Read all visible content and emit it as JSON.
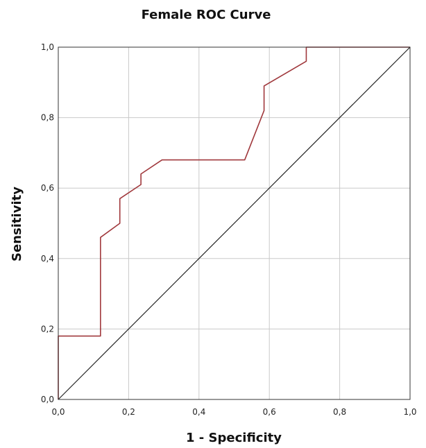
{
  "chart_data": {
    "type": "line",
    "title": "Female ROC Curve",
    "xlabel": "1 - Specificity",
    "ylabel": "Sensitivity",
    "xlim": [
      0,
      1
    ],
    "ylim": [
      0,
      1
    ],
    "x_ticks": [
      "0,0",
      "0,2",
      "0,4",
      "0,6",
      "0,8",
      "1,0"
    ],
    "y_ticks": [
      "0,0",
      "0,2",
      "0,4",
      "0,6",
      "0,8",
      "1,0"
    ],
    "grid": true,
    "series": [
      {
        "name": "",
        "color": "#a0383c",
        "points": [
          [
            0.0,
            0.0
          ],
          [
            0.0,
            0.18
          ],
          [
            0.12,
            0.18
          ],
          [
            0.12,
            0.46
          ],
          [
            0.175,
            0.5
          ],
          [
            0.175,
            0.57
          ],
          [
            0.235,
            0.61
          ],
          [
            0.235,
            0.64
          ],
          [
            0.295,
            0.68
          ],
          [
            0.53,
            0.68
          ],
          [
            0.585,
            0.82
          ],
          [
            0.585,
            0.89
          ],
          [
            0.705,
            0.96
          ],
          [
            0.705,
            1.0
          ],
          [
            1.0,
            1.0
          ]
        ]
      },
      {
        "name": "",
        "color": "#222222",
        "points": [
          [
            0.0,
            0.0
          ],
          [
            1.0,
            1.0
          ]
        ]
      }
    ]
  }
}
